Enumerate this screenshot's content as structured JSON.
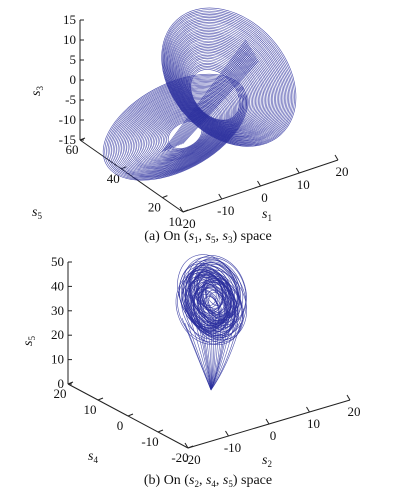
{
  "chart_data": [
    {
      "type": "line3d",
      "caption": {
        "prefix": "(a) On (",
        "vars": [
          {
            "name": "s",
            "sub": "1"
          },
          {
            "name": "s",
            "sub": "5"
          },
          {
            "name": "s",
            "sub": "3"
          }
        ],
        "suffix": ") space"
      },
      "axes": {
        "x": {
          "label": "s",
          "label_sub": "1",
          "ticks": [
            -20,
            -10,
            0,
            10,
            20
          ],
          "range": [
            -20,
            20
          ]
        },
        "y": {
          "label": "s",
          "label_sub": "5",
          "ticks": [
            10,
            20,
            40,
            60
          ],
          "range": [
            10,
            60
          ]
        },
        "z": {
          "label": "s",
          "label_sub": "3",
          "ticks": [
            -15,
            -10,
            -5,
            0,
            5,
            10,
            15
          ],
          "range": [
            -15,
            15
          ]
        }
      },
      "trajectory": {
        "attractor": "two-lobe",
        "loops": 80,
        "color": "#2b2f9e"
      }
    },
    {
      "type": "line3d",
      "caption": {
        "prefix": "(b) On (",
        "vars": [
          {
            "name": "s",
            "sub": "2"
          },
          {
            "name": "s",
            "sub": "4"
          },
          {
            "name": "s",
            "sub": "5"
          }
        ],
        "suffix": ") space"
      },
      "axes": {
        "x": {
          "label": "s",
          "label_sub": "2",
          "ticks": [
            -20,
            -10,
            0,
            10,
            20
          ],
          "range": [
            -20,
            20
          ]
        },
        "y": {
          "label": "s",
          "label_sub": "4",
          "ticks": [
            20,
            10,
            0,
            -10,
            -20
          ],
          "range": [
            -20,
            20
          ]
        },
        "z": {
          "label": "s",
          "label_sub": "5",
          "ticks": [
            0,
            10,
            20,
            30,
            40,
            50
          ],
          "range": [
            0,
            50
          ]
        }
      },
      "trajectory": {
        "attractor": "cone",
        "loops": 70,
        "color": "#2b2f9e"
      }
    }
  ]
}
